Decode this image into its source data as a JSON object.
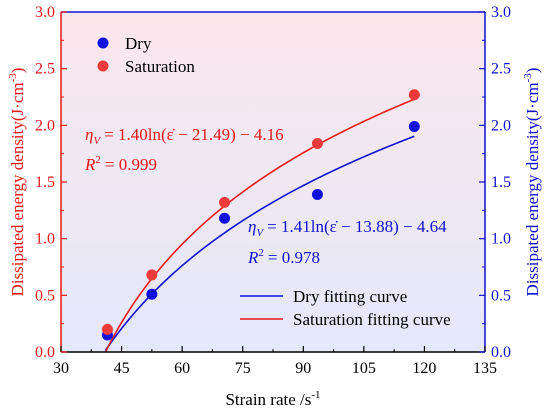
{
  "chart_data": {
    "type": "scatter",
    "xlabel": "Strain rate /s",
    "xlabel_sup": "-1",
    "ylabel_left": "Dissipated energy density(J·cm",
    "ylabel_right": "Dissipated energy density(J·cm",
    "ylabel_sup": "-3",
    "ylabel_close": ")",
    "xlim": [
      30,
      135
    ],
    "ylim": [
      0,
      3.0
    ],
    "xticks": [
      30,
      45,
      60,
      75,
      90,
      105,
      120,
      135
    ],
    "xtick_labels": [
      "30",
      "45",
      "60",
      "75",
      "90",
      "105",
      "120",
      "135"
    ],
    "yticks": [
      0,
      0.5,
      1.0,
      1.5,
      2.0,
      2.5,
      3.0
    ],
    "ytick_labels": [
      "0.0",
      "0.5",
      "1.0",
      "1.5",
      "2.0",
      "2.5",
      "3.0"
    ],
    "grid": false,
    "legend_top": [
      {
        "label": "Dry",
        "marker": "circle",
        "color": "#1010e0"
      },
      {
        "label": "Saturation",
        "marker": "circle",
        "color": "#ee3a3a"
      }
    ],
    "legend_bottom": [
      {
        "label": "Dry fitting curve",
        "color": "#1010d0"
      },
      {
        "label": "Saturation fitting curve",
        "color": "#e81818"
      }
    ],
    "series": [
      {
        "name": "Dry",
        "color": "#1010e0",
        "points": [
          {
            "x": 41.5,
            "y": 0.15
          },
          {
            "x": 52.5,
            "y": 0.51
          },
          {
            "x": 70.5,
            "y": 1.18
          },
          {
            "x": 93.5,
            "y": 1.39
          },
          {
            "x": 117.5,
            "y": 1.99
          }
        ]
      },
      {
        "name": "Saturation",
        "color": "#ee3a3a",
        "points": [
          {
            "x": 41.5,
            "y": 0.2
          },
          {
            "x": 52.5,
            "y": 0.68
          },
          {
            "x": 70.5,
            "y": 1.32
          },
          {
            "x": 93.5,
            "y": 1.84
          },
          {
            "x": 117.5,
            "y": 2.27
          }
        ]
      }
    ],
    "fits": [
      {
        "name": "Dry fitting curve",
        "a": 1.41,
        "b": 13.88,
        "c": -4.64,
        "x_start": 41.0,
        "x_end": 117.5,
        "color": "#1010d0"
      },
      {
        "name": "Saturation fitting curve",
        "a": 1.4,
        "b": 21.49,
        "c": -4.16,
        "x_start": 41.0,
        "x_end": 117.5,
        "color": "#e81818"
      }
    ],
    "annotations": [
      {
        "name": "saturation-equation",
        "color": "#e81818",
        "eta": "η",
        "eta_sub": "V",
        "equation_rhs": "= 1.40ln(ε̇ − 21.49) − 4.16",
        "r2_label": "R",
        "r2_sup": "2",
        "r2_value": "= 0.999"
      },
      {
        "name": "dry-equation",
        "color": "#1010d0",
        "eta": "η",
        "eta_sub": "V",
        "equation_rhs": "= 1.41ln(ε̇ − 13.88) − 4.64",
        "r2_label": "R",
        "r2_sup": "2",
        "r2_value": "= 0.978"
      }
    ],
    "colors": {
      "left_axis": "#e81818",
      "right_axis": "#1010d0",
      "frame": "#1010d0",
      "bottom_axis": "#000000",
      "background_top": "#fbe7ec",
      "background_bottom": "#e4e8fb"
    }
  }
}
